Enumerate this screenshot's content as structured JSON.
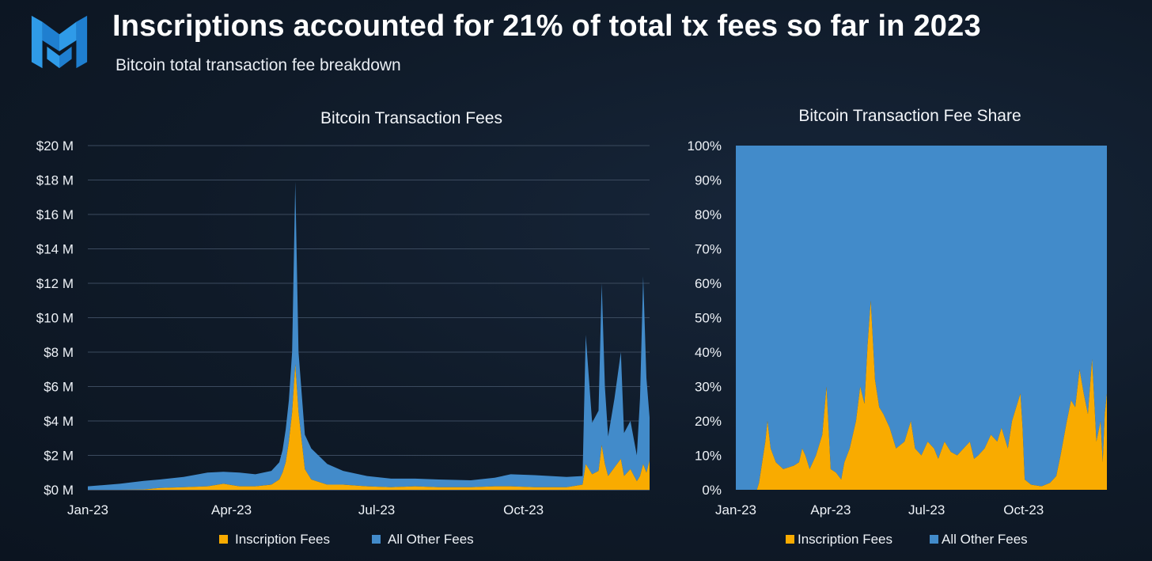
{
  "header": {
    "logo_name": "messari-logo",
    "title": "Inscriptions accounted for 21% of total tx fees so far in 2023",
    "subtitle": "Bitcoin total transaction fee breakdown"
  },
  "colors": {
    "inscription": "#f9ab00",
    "other": "#428bca",
    "grid": "#3b4a5e",
    "axis": "#6b7a8e"
  },
  "chart_data": [
    {
      "type": "area",
      "stacked": true,
      "title": "Bitcoin Transaction Fees",
      "xlabel": "",
      "ylabel": "",
      "ylim": [
        0,
        20
      ],
      "y_ticks": [
        0,
        2,
        4,
        6,
        8,
        10,
        12,
        14,
        16,
        18,
        20
      ],
      "y_tick_labels": [
        "$0 M",
        "$2 M",
        "$4 M",
        "$6 M",
        "$8 M",
        "$10 M",
        "$12 M",
        "$14 M",
        "$16 M",
        "$18 M",
        "$20 M"
      ],
      "x_range": [
        0,
        352
      ],
      "x_ticks": [
        0,
        90,
        181,
        273
      ],
      "x_tick_labels": [
        "Jan-23",
        "Apr-23",
        "Jul-23",
        "Oct-23"
      ],
      "legend_position": "bottom-center",
      "series": [
        {
          "name": "Inscription Fees",
          "x": [
            0,
            20,
            35,
            45,
            60,
            75,
            85,
            95,
            105,
            115,
            120,
            122,
            124,
            126,
            128,
            130,
            132,
            136,
            140,
            150,
            160,
            175,
            190,
            205,
            220,
            240,
            255,
            265,
            280,
            300,
            310,
            312,
            316,
            320,
            322,
            324,
            326,
            330,
            334,
            336,
            340,
            344,
            346,
            348,
            350,
            352
          ],
          "values": [
            0,
            0,
            0.02,
            0.1,
            0.15,
            0.2,
            0.35,
            0.2,
            0.2,
            0.3,
            0.6,
            1.0,
            1.6,
            2.8,
            4.5,
            7.3,
            4.5,
            1.2,
            0.6,
            0.3,
            0.3,
            0.2,
            0.15,
            0.2,
            0.15,
            0.15,
            0.2,
            0.2,
            0.15,
            0.15,
            0.3,
            1.5,
            0.9,
            1.1,
            2.6,
            1.5,
            0.8,
            1.3,
            1.8,
            0.8,
            1.2,
            0.5,
            0.8,
            1.5,
            1.0,
            1.7
          ]
        },
        {
          "name": "All Other Fees",
          "x": [
            0,
            20,
            35,
            45,
            60,
            75,
            85,
            95,
            105,
            115,
            120,
            122,
            124,
            126,
            128,
            130,
            132,
            136,
            140,
            150,
            160,
            175,
            190,
            205,
            220,
            240,
            255,
            265,
            280,
            300,
            310,
            312,
            316,
            320,
            322,
            324,
            326,
            330,
            334,
            336,
            340,
            344,
            346,
            348,
            350,
            352
          ],
          "values": [
            0.2,
            0.35,
            0.5,
            0.5,
            0.6,
            0.8,
            0.7,
            0.8,
            0.7,
            0.8,
            1.0,
            1.3,
            1.9,
            2.4,
            3.5,
            10.6,
            3.5,
            2.0,
            1.8,
            1.2,
            0.8,
            0.6,
            0.5,
            0.45,
            0.45,
            0.4,
            0.5,
            0.7,
            0.7,
            0.6,
            0.5,
            7.5,
            3.0,
            3.5,
            9.4,
            4.5,
            2.3,
            4.0,
            6.2,
            2.5,
            2.8,
            1.5,
            4.5,
            10.9,
            5.5,
            2.5
          ]
        }
      ]
    },
    {
      "type": "area",
      "stacked": true,
      "title": "Bitcoin Transaction Fee Share",
      "xlabel": "",
      "ylabel": "",
      "ylim": [
        0,
        100
      ],
      "y_ticks": [
        0,
        10,
        20,
        30,
        40,
        50,
        60,
        70,
        80,
        90,
        100
      ],
      "y_tick_labels": [
        "0%",
        "10%",
        "20%",
        "30%",
        "40%",
        "50%",
        "60%",
        "70%",
        "80%",
        "90%",
        "100%"
      ],
      "x_range": [
        0,
        352
      ],
      "x_ticks": [
        0,
        90,
        181,
        273
      ],
      "x_tick_labels": [
        "Jan-23",
        "Apr-23",
        "Jul-23",
        "Oct-23"
      ],
      "legend_position": "bottom-center",
      "series": [
        {
          "name": "Inscription Fees",
          "x": [
            0,
            20,
            22,
            25,
            28,
            30,
            33,
            38,
            45,
            55,
            60,
            63,
            66,
            70,
            76,
            82,
            86,
            90,
            95,
            100,
            103,
            108,
            114,
            118,
            122,
            125,
            128,
            132,
            136,
            140,
            146,
            152,
            160,
            166,
            170,
            176,
            182,
            188,
            192,
            198,
            204,
            210,
            216,
            222,
            226,
            230,
            236,
            242,
            248,
            252,
            258,
            262,
            266,
            270,
            272,
            274,
            280,
            290,
            298,
            304,
            308,
            314,
            318,
            322,
            326,
            330,
            334,
            338,
            342,
            346,
            348,
            350,
            352
          ],
          "values": [
            0,
            0,
            2,
            8,
            14,
            20,
            12,
            8,
            6,
            7,
            8,
            12,
            10,
            6,
            10,
            16,
            30,
            6,
            5,
            3,
            8,
            12,
            20,
            30,
            25,
            42,
            55,
            32,
            24,
            22,
            18,
            12,
            14,
            20,
            12,
            10,
            14,
            12,
            9,
            14,
            11,
            10,
            12,
            14,
            9,
            10,
            12,
            16,
            14,
            18,
            12,
            20,
            24,
            28,
            18,
            3,
            1.5,
            1,
            2,
            4,
            10,
            20,
            26,
            24,
            35,
            28,
            22,
            38,
            14,
            20,
            8,
            22,
            28
          ]
        },
        {
          "name": "All Other Fees",
          "x": [
            0,
            20,
            22,
            25,
            28,
            30,
            33,
            38,
            45,
            55,
            60,
            63,
            66,
            70,
            76,
            82,
            86,
            90,
            95,
            100,
            103,
            108,
            114,
            118,
            122,
            125,
            128,
            132,
            136,
            140,
            146,
            152,
            160,
            166,
            170,
            176,
            182,
            188,
            192,
            198,
            204,
            210,
            216,
            222,
            226,
            230,
            236,
            242,
            248,
            252,
            258,
            262,
            266,
            270,
            272,
            274,
            280,
            290,
            298,
            304,
            308,
            314,
            318,
            322,
            326,
            330,
            334,
            338,
            342,
            346,
            348,
            350,
            352
          ],
          "values": [
            100,
            100,
            98,
            92,
            86,
            80,
            88,
            92,
            94,
            93,
            92,
            88,
            90,
            94,
            90,
            84,
            70,
            94,
            95,
            97,
            92,
            88,
            80,
            70,
            75,
            58,
            45,
            68,
            76,
            78,
            82,
            88,
            86,
            80,
            88,
            90,
            86,
            88,
            91,
            86,
            89,
            90,
            88,
            86,
            91,
            90,
            88,
            84,
            86,
            82,
            88,
            80,
            76,
            72,
            82,
            97,
            98.5,
            99,
            98,
            96,
            90,
            80,
            74,
            76,
            65,
            72,
            78,
            62,
            86,
            80,
            92,
            78,
            72
          ]
        }
      ]
    }
  ]
}
